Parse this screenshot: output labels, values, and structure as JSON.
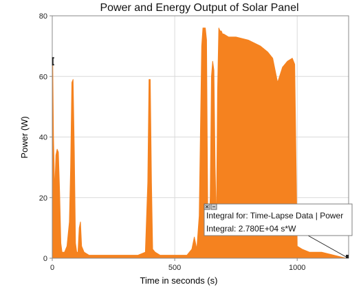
{
  "colors": {
    "series": "#F5821F",
    "grid": "#d9d9d9",
    "axis": "#888888",
    "callout_border": "#7f7f7f"
  },
  "chart_data": {
    "type": "area",
    "title": "Power and Energy Output of Solar Panel",
    "xlabel": "Time in seconds (s)",
    "ylabel": "Power (W)",
    "xlim": [
      0,
      1210
    ],
    "ylim": [
      0,
      80
    ],
    "x_ticks": [
      0,
      500,
      1000
    ],
    "y_ticks": [
      0,
      20,
      40,
      60,
      80
    ],
    "grid": true,
    "legend": "none",
    "series": [
      {
        "x": [
          0,
          2,
          5,
          10,
          15,
          20,
          25,
          30,
          35,
          40,
          45,
          50,
          60,
          70,
          75,
          80,
          85,
          90,
          95,
          100,
          105,
          110,
          115,
          120,
          130,
          150,
          200,
          250,
          300,
          350,
          380,
          390,
          395,
          400,
          405,
          410,
          420,
          440,
          470,
          500,
          550,
          570,
          580,
          590,
          600,
          610,
          615,
          620,
          625,
          630,
          635,
          640,
          645,
          650,
          655,
          660,
          665,
          670,
          675,
          680,
          685,
          690,
          695,
          700,
          720,
          750,
          800,
          850,
          880,
          900,
          920,
          940,
          960,
          980,
          990,
          1000,
          1020,
          1050,
          1100,
          1150,
          1200,
          1210
        ],
        "y": [
          5,
          64,
          40,
          22,
          34,
          36,
          35,
          22,
          5,
          2,
          2,
          2,
          4,
          12,
          30,
          58,
          59,
          35,
          5,
          2,
          2,
          10,
          12,
          4,
          2,
          1,
          1,
          1,
          1,
          1,
          2,
          25,
          59,
          59,
          25,
          3,
          2,
          1,
          1,
          1,
          1,
          3,
          7,
          3,
          14,
          70,
          76,
          76,
          76,
          72,
          12,
          10,
          20,
          60,
          65,
          62,
          30,
          10,
          55,
          76,
          75,
          75,
          74,
          74,
          73,
          73,
          72,
          70,
          68,
          66,
          58,
          63,
          65,
          66,
          64,
          4,
          3,
          2,
          2,
          1,
          0,
          0
        ]
      }
    ],
    "cursor": {
      "x": 2,
      "y": 65
    },
    "integral_region": {
      "x_start": 0,
      "x_end": 1210
    },
    "annotation": {
      "line1": "Integral for: Time-Lapse Data | Power",
      "line2": "Integral: 2.780E+04 s*W",
      "anchor": {
        "x": 1210,
        "y": 0
      }
    }
  }
}
